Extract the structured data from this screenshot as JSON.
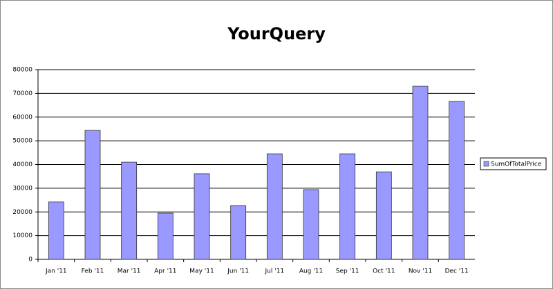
{
  "chart_data": {
    "type": "bar",
    "title": "YourQuery",
    "categories": [
      "Jan '11",
      "Feb '11",
      "Mar '11",
      "Apr '11",
      "May '11",
      "Jun '11",
      "Jul '11",
      "Aug '11",
      "Sep '11",
      "Oct '11",
      "Nov '11",
      "Dec '11"
    ],
    "series": [
      {
        "name": "SumOfTotalPrice",
        "color": "#9999ff",
        "values": [
          24200,
          54400,
          41000,
          19500,
          36100,
          22700,
          44500,
          29400,
          44500,
          36900,
          73000,
          66600
        ]
      }
    ],
    "ylim": [
      0,
      80000
    ],
    "yticks": [
      0,
      10000,
      20000,
      30000,
      40000,
      50000,
      60000,
      70000,
      80000
    ],
    "grid": true,
    "legend": "right"
  }
}
